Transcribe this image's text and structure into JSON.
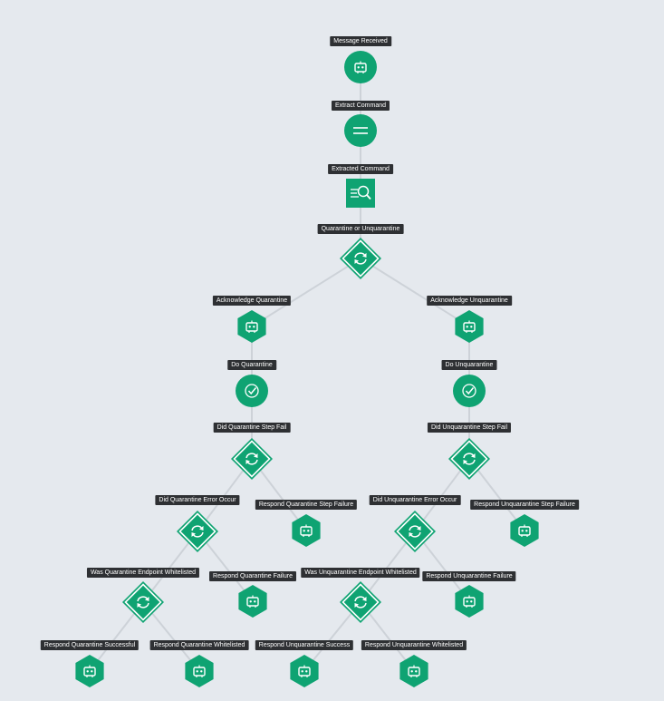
{
  "colors": {
    "background": "#e5e9ee",
    "node": "#0fa372",
    "label_bg": "#2e3033",
    "edge": "#cdd2d8"
  },
  "nodes": [
    {
      "id": "message-received",
      "label": "Message Received",
      "shape": "circle",
      "icon": "bot-icon"
    },
    {
      "id": "extract-command",
      "label": "Extract Command",
      "shape": "circle",
      "icon": "equals-icon"
    },
    {
      "id": "extracted-command",
      "label": "Extracted Command",
      "shape": "square",
      "icon": "search-doc-icon"
    },
    {
      "id": "quarantine-or-unquarantine",
      "label": "Quarantine or Unquarantine",
      "shape": "diamond",
      "icon": "cycle-icon"
    },
    {
      "id": "acknowledge-quarantine",
      "label": "Acknowledge Quarantine",
      "shape": "hexagon",
      "icon": "bot-icon"
    },
    {
      "id": "acknowledge-unquarantine",
      "label": "Acknowledge Unquarantine",
      "shape": "hexagon",
      "icon": "bot-icon"
    },
    {
      "id": "do-quarantine",
      "label": "Do Quarantine",
      "shape": "circle",
      "icon": "check-badge-icon"
    },
    {
      "id": "do-unquarantine",
      "label": "Do Unquarantine",
      "shape": "circle",
      "icon": "check-badge-icon"
    },
    {
      "id": "did-quarantine-step-fail",
      "label": "Did Quarantine Step Fail",
      "shape": "diamond",
      "icon": "cycle-icon"
    },
    {
      "id": "did-unquarantine-step-fail",
      "label": "Did Unquarantine Step Fail",
      "shape": "diamond",
      "icon": "cycle-icon"
    },
    {
      "id": "did-quarantine-error-occur",
      "label": "Did Quarantine Error Occur",
      "shape": "diamond",
      "icon": "cycle-icon"
    },
    {
      "id": "respond-quarantine-step-failure",
      "label": "Respond Quarantine Step Failure",
      "shape": "hexagon",
      "icon": "bot-icon"
    },
    {
      "id": "did-unquarantine-error-occur",
      "label": "Did Unquarantine Error Occur",
      "shape": "diamond",
      "icon": "cycle-icon"
    },
    {
      "id": "respond-unquarantine-step-failure",
      "label": "Respond Unquarantine Step Failure",
      "shape": "hexagon",
      "icon": "bot-icon"
    },
    {
      "id": "was-quarantine-endpoint-whitelisted",
      "label": "Was Quarantine Endpoint Whitelisted",
      "shape": "diamond",
      "icon": "cycle-icon"
    },
    {
      "id": "respond-quarantine-failure",
      "label": "Respond Quarantine Failure",
      "shape": "hexagon",
      "icon": "bot-icon"
    },
    {
      "id": "was-unquarantine-endpoint-whitelisted",
      "label": "Was Unquarantine Endpoint Whitelisted",
      "shape": "diamond",
      "icon": "cycle-icon"
    },
    {
      "id": "respond-unquarantine-failure",
      "label": "Respond Unquarantine Failure",
      "shape": "hexagon",
      "icon": "bot-icon"
    },
    {
      "id": "respond-quarantine-successful",
      "label": "Respond Quarantine Successful",
      "shape": "hexagon",
      "icon": "bot-icon"
    },
    {
      "id": "respond-quarantine-whitelisted",
      "label": "Respond Quarantine Whitelisted",
      "shape": "hexagon",
      "icon": "bot-icon"
    },
    {
      "id": "respond-unquarantine-success",
      "label": "Respond Unquarantine Success",
      "shape": "hexagon",
      "icon": "bot-icon"
    },
    {
      "id": "respond-unquarantine-whitelisted",
      "label": "Respond Unquarantine Whitelisted",
      "shape": "hexagon",
      "icon": "bot-icon"
    }
  ],
  "edges": [
    [
      "message-received",
      "extract-command"
    ],
    [
      "extract-command",
      "extracted-command"
    ],
    [
      "extracted-command",
      "quarantine-or-unquarantine"
    ],
    [
      "quarantine-or-unquarantine",
      "acknowledge-quarantine"
    ],
    [
      "quarantine-or-unquarantine",
      "acknowledge-unquarantine"
    ],
    [
      "acknowledge-quarantine",
      "do-quarantine"
    ],
    [
      "acknowledge-unquarantine",
      "do-unquarantine"
    ],
    [
      "do-quarantine",
      "did-quarantine-step-fail"
    ],
    [
      "do-unquarantine",
      "did-unquarantine-step-fail"
    ],
    [
      "did-quarantine-step-fail",
      "did-quarantine-error-occur"
    ],
    [
      "did-quarantine-step-fail",
      "respond-quarantine-step-failure"
    ],
    [
      "did-unquarantine-step-fail",
      "did-unquarantine-error-occur"
    ],
    [
      "did-unquarantine-step-fail",
      "respond-unquarantine-step-failure"
    ],
    [
      "did-quarantine-error-occur",
      "was-quarantine-endpoint-whitelisted"
    ],
    [
      "did-quarantine-error-occur",
      "respond-quarantine-failure"
    ],
    [
      "did-unquarantine-error-occur",
      "was-unquarantine-endpoint-whitelisted"
    ],
    [
      "did-unquarantine-error-occur",
      "respond-unquarantine-failure"
    ],
    [
      "was-quarantine-endpoint-whitelisted",
      "respond-quarantine-successful"
    ],
    [
      "was-quarantine-endpoint-whitelisted",
      "respond-quarantine-whitelisted"
    ],
    [
      "was-unquarantine-endpoint-whitelisted",
      "respond-unquarantine-success"
    ],
    [
      "was-unquarantine-endpoint-whitelisted",
      "respond-unquarantine-whitelisted"
    ]
  ]
}
